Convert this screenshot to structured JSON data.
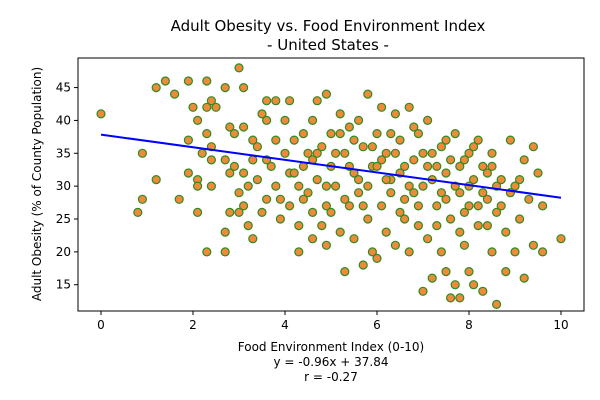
{
  "chart_data": {
    "type": "scatter",
    "title": [
      "Adult Obesity vs. Food Environment Index",
      "- United States -"
    ],
    "xlabel": [
      "Food Environment Index (0-10)",
      "y = -0.96x + 37.84",
      "r = -0.27"
    ],
    "ylabel": "Adult Obesity (% of County Population)",
    "xlim": [
      -0.5,
      10.5
    ],
    "ylim": [
      11,
      49.5
    ],
    "xticks": [
      0,
      2,
      4,
      6,
      8,
      10
    ],
    "yticks": [
      15,
      20,
      25,
      30,
      35,
      40,
      45
    ],
    "grid": false,
    "colors": {
      "marker_fill": "#ef8a3c",
      "marker_edge": "#2f8b1f",
      "regression": "#0000ff"
    },
    "regression": {
      "slope": -0.96,
      "intercept": 37.84,
      "r": -0.27
    },
    "points": [
      [
        0,
        41
      ],
      [
        0.8,
        26
      ],
      [
        0.9,
        28
      ],
      [
        0.9,
        35
      ],
      [
        1.2,
        45
      ],
      [
        1.2,
        31
      ],
      [
        1.4,
        46
      ],
      [
        1.6,
        44
      ],
      [
        1.7,
        28
      ],
      [
        1.9,
        46
      ],
      [
        1.9,
        37
      ],
      [
        1.9,
        32
      ],
      [
        2.0,
        42
      ],
      [
        2.1,
        40
      ],
      [
        2.1,
        26
      ],
      [
        2.1,
        31
      ],
      [
        2.1,
        30
      ],
      [
        2.2,
        35
      ],
      [
        2.3,
        46
      ],
      [
        2.3,
        42
      ],
      [
        2.3,
        38
      ],
      [
        2.3,
        20
      ],
      [
        2.4,
        43
      ],
      [
        2.4,
        36
      ],
      [
        2.4,
        34
      ],
      [
        2.4,
        30
      ],
      [
        2.5,
        42
      ],
      [
        2.7,
        45
      ],
      [
        2.7,
        34
      ],
      [
        2.7,
        23
      ],
      [
        2.7,
        20
      ],
      [
        2.8,
        39
      ],
      [
        2.8,
        32
      ],
      [
        2.8,
        26
      ],
      [
        2.9,
        38
      ],
      [
        2.9,
        33
      ],
      [
        3.0,
        48
      ],
      [
        3.0,
        29
      ],
      [
        3.0,
        26
      ],
      [
        3.1,
        45
      ],
      [
        3.1,
        39
      ],
      [
        3.1,
        32
      ],
      [
        3.1,
        27
      ],
      [
        3.2,
        30
      ],
      [
        3.2,
        24
      ],
      [
        3.3,
        37
      ],
      [
        3.3,
        34
      ],
      [
        3.3,
        22
      ],
      [
        3.4,
        36
      ],
      [
        3.4,
        31
      ],
      [
        3.5,
        41
      ],
      [
        3.5,
        26
      ],
      [
        3.6,
        43
      ],
      [
        3.6,
        40
      ],
      [
        3.6,
        34
      ],
      [
        3.6,
        28
      ],
      [
        3.7,
        33
      ],
      [
        3.8,
        43
      ],
      [
        3.8,
        37
      ],
      [
        3.8,
        30
      ],
      [
        3.9,
        28
      ],
      [
        3.9,
        25
      ],
      [
        4.0,
        40
      ],
      [
        4.0,
        35
      ],
      [
        4.1,
        43
      ],
      [
        4.1,
        32
      ],
      [
        4.1,
        27
      ],
      [
        4.2,
        37
      ],
      [
        4.3,
        30
      ],
      [
        4.3,
        24
      ],
      [
        4.3,
        20
      ],
      [
        4.4,
        38
      ],
      [
        4.4,
        33
      ],
      [
        4.5,
        35
      ],
      [
        4.5,
        29
      ],
      [
        4.6,
        40
      ],
      [
        4.6,
        26
      ],
      [
        4.6,
        22
      ],
      [
        4.7,
        43
      ],
      [
        4.7,
        31
      ],
      [
        4.8,
        36
      ],
      [
        4.8,
        24
      ],
      [
        4.9,
        44
      ],
      [
        4.9,
        27
      ],
      [
        4.9,
        21
      ],
      [
        5.0,
        38
      ],
      [
        5.0,
        33
      ],
      [
        5.1,
        30
      ],
      [
        5.2,
        41
      ],
      [
        5.2,
        23
      ],
      [
        5.3,
        35
      ],
      [
        5.3,
        17
      ],
      [
        5.4,
        39
      ],
      [
        5.4,
        27
      ],
      [
        5.5,
        32
      ],
      [
        5.5,
        22
      ],
      [
        5.6,
        40
      ],
      [
        5.6,
        29
      ],
      [
        5.7,
        36
      ],
      [
        5.7,
        18
      ],
      [
        5.8,
        44
      ],
      [
        5.8,
        25
      ],
      [
        5.9,
        33
      ],
      [
        5.9,
        20
      ],
      [
        6.0,
        38
      ],
      [
        6.0,
        19
      ],
      [
        6.1,
        42
      ],
      [
        6.1,
        27
      ],
      [
        6.2,
        35
      ],
      [
        6.2,
        23
      ],
      [
        6.3,
        31
      ],
      [
        6.4,
        41
      ],
      [
        6.4,
        21
      ],
      [
        6.5,
        37
      ],
      [
        6.5,
        26
      ],
      [
        6.6,
        33
      ],
      [
        6.7,
        42
      ],
      [
        6.7,
        20
      ],
      [
        6.8,
        29
      ],
      [
        6.9,
        38
      ],
      [
        6.9,
        24
      ],
      [
        7.0,
        14
      ],
      [
        7.0,
        35
      ],
      [
        7.1,
        40
      ],
      [
        7.1,
        22
      ],
      [
        7.2,
        31
      ],
      [
        7.2,
        16
      ],
      [
        7.3,
        27
      ],
      [
        7.4,
        36
      ],
      [
        7.4,
        20
      ],
      [
        7.5,
        17
      ],
      [
        7.5,
        32
      ],
      [
        7.6,
        13
      ],
      [
        7.6,
        25
      ],
      [
        7.7,
        38
      ],
      [
        7.7,
        15
      ],
      [
        7.8,
        29
      ],
      [
        7.8,
        13
      ],
      [
        7.9,
        34
      ],
      [
        7.9,
        21
      ],
      [
        8.0,
        17
      ],
      [
        8.0,
        30
      ],
      [
        8.1,
        15
      ],
      [
        8.2,
        37
      ],
      [
        8.2,
        24
      ],
      [
        8.3,
        14
      ],
      [
        8.3,
        33
      ],
      [
        8.4,
        28
      ],
      [
        8.5,
        20
      ],
      [
        8.5,
        35
      ],
      [
        8.6,
        12
      ],
      [
        8.6,
        26
      ],
      [
        8.7,
        31
      ],
      [
        8.8,
        17
      ],
      [
        8.8,
        23
      ],
      [
        8.9,
        37
      ],
      [
        9.0,
        20
      ],
      [
        9.0,
        30
      ],
      [
        9.1,
        25
      ],
      [
        9.2,
        16
      ],
      [
        9.2,
        34
      ],
      [
        9.3,
        28
      ],
      [
        9.4,
        21
      ],
      [
        9.4,
        36
      ],
      [
        9.5,
        32
      ],
      [
        9.6,
        20
      ],
      [
        9.6,
        27
      ],
      [
        10.0,
        22
      ],
      [
        4.2,
        32
      ],
      [
        4.6,
        34
      ],
      [
        5.1,
        35
      ],
      [
        5.4,
        33
      ],
      [
        5.6,
        31
      ],
      [
        5.9,
        36
      ],
      [
        6.1,
        34
      ],
      [
        6.3,
        29
      ],
      [
        6.5,
        32
      ],
      [
        6.6,
        28
      ],
      [
        6.8,
        34
      ],
      [
        7.0,
        30
      ],
      [
        7.2,
        35
      ],
      [
        7.3,
        33
      ],
      [
        7.5,
        28
      ],
      [
        7.7,
        30
      ],
      [
        7.8,
        33
      ],
      [
        8.0,
        27
      ],
      [
        8.1,
        31
      ],
      [
        8.3,
        29
      ],
      [
        8.4,
        32
      ],
      [
        8.6,
        30
      ],
      [
        8.7,
        27
      ],
      [
        8.9,
        29
      ],
      [
        9.1,
        31
      ],
      [
        4.4,
        28
      ],
      [
        4.9,
        30
      ],
      [
        5.3,
        28
      ],
      [
        5.8,
        30
      ],
      [
        6.2,
        31
      ],
      [
        6.7,
        30
      ],
      [
        6.9,
        27
      ],
      [
        7.4,
        29
      ],
      [
        7.9,
        26
      ],
      [
        8.2,
        27
      ],
      [
        4.7,
        35
      ],
      [
        5.5,
        37
      ],
      [
        6.0,
        33
      ],
      [
        6.4,
        35
      ],
      [
        7.1,
        33
      ],
      [
        7.6,
        34
      ],
      [
        8.0,
        35
      ],
      [
        8.5,
        33
      ],
      [
        5.0,
        26
      ],
      [
        5.7,
        27
      ],
      [
        6.6,
        25
      ],
      [
        7.3,
        24
      ],
      [
        7.8,
        23
      ],
      [
        8.4,
        24
      ],
      [
        6.3,
        38
      ],
      [
        6.8,
        39
      ],
      [
        7.5,
        37
      ],
      [
        8.1,
        36
      ],
      [
        5.2,
        38
      ]
    ]
  }
}
